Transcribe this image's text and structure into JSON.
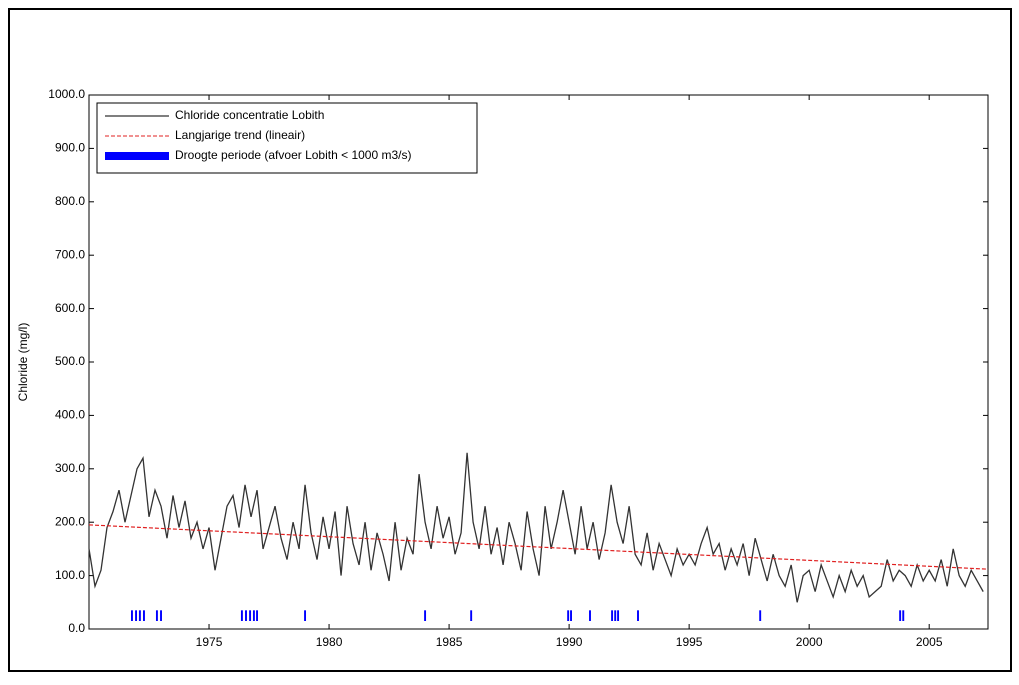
{
  "chart_data": {
    "type": "line",
    "y_label": "Chloride (mg/l)",
    "xlim": [
      1970,
      2007.45
    ],
    "xticks": [
      1975,
      1980,
      1985,
      1990,
      1995,
      2000,
      2005
    ],
    "ylim": [
      0,
      1000
    ],
    "yticks": [
      {
        "value": 0,
        "label": "0.0"
      },
      {
        "value": 100,
        "label": "100.0"
      },
      {
        "value": 200,
        "label": "200.0"
      },
      {
        "value": 300,
        "label": "300.0"
      },
      {
        "value": 400,
        "label": "400.0"
      },
      {
        "value": 500,
        "label": "500.0"
      },
      {
        "value": 600,
        "label": "600.0"
      },
      {
        "value": 700,
        "label": "700.0"
      },
      {
        "value": 800,
        "label": "800.0"
      },
      {
        "value": 900,
        "label": "900.0"
      },
      {
        "value": 1000,
        "label": "1000.0"
      }
    ],
    "legend": "upper left",
    "series": [
      {
        "name": "Chloride concentratie Lobith",
        "color": "#333333",
        "x": [
          1970,
          1970.25,
          1970.5,
          1970.75,
          1971,
          1971.25,
          1971.5,
          1971.75,
          1972,
          1972.25,
          1972.5,
          1972.75,
          1973,
          1973.25,
          1973.5,
          1973.75,
          1974,
          1974.25,
          1974.5,
          1974.75,
          1975,
          1975.25,
          1975.5,
          1975.75,
          1976,
          1976.25,
          1976.5,
          1976.75,
          1977,
          1977.25,
          1977.5,
          1977.75,
          1978,
          1978.25,
          1978.5,
          1978.75,
          1979,
          1979.25,
          1979.5,
          1979.75,
          1980,
          1980.25,
          1980.5,
          1980.75,
          1981,
          1981.25,
          1981.5,
          1981.75,
          1982,
          1982.25,
          1982.5,
          1982.75,
          1983,
          1983.25,
          1983.5,
          1983.75,
          1984,
          1984.25,
          1984.5,
          1984.75,
          1985,
          1985.25,
          1985.5,
          1985.75,
          1986,
          1986.25,
          1986.5,
          1986.75,
          1987,
          1987.25,
          1987.5,
          1987.75,
          1988,
          1988.25,
          1988.5,
          1988.75,
          1989,
          1989.25,
          1989.5,
          1989.75,
          1990,
          1990.25,
          1990.5,
          1990.75,
          1991,
          1991.25,
          1991.5,
          1991.75,
          1992,
          1992.25,
          1992.5,
          1992.75,
          1993,
          1993.25,
          1993.5,
          1993.75,
          1994,
          1994.25,
          1994.5,
          1994.75,
          1995,
          1995.25,
          1995.5,
          1995.75,
          1996,
          1996.25,
          1996.5,
          1996.75,
          1997,
          1997.25,
          1997.5,
          1997.75,
          1998,
          1998.25,
          1998.5,
          1998.75,
          1999,
          1999.25,
          1999.5,
          1999.75,
          2000,
          2000.25,
          2000.5,
          2000.75,
          2001,
          2001.25,
          2001.5,
          2001.75,
          2002,
          2002.25,
          2002.5,
          2002.75,
          2003,
          2003.25,
          2003.5,
          2003.75,
          2004,
          2004.25,
          2004.5,
          2004.75,
          2005,
          2005.25,
          2005.5,
          2005.75,
          2006,
          2006.25,
          2006.5,
          2006.75,
          2007,
          2007.25
        ],
        "values": [
          150,
          80,
          110,
          190,
          220,
          260,
          200,
          250,
          300,
          320,
          210,
          260,
          230,
          170,
          250,
          190,
          240,
          170,
          200,
          150,
          190,
          110,
          170,
          230,
          250,
          190,
          270,
          210,
          260,
          150,
          190,
          230,
          170,
          130,
          200,
          150,
          270,
          180,
          130,
          210,
          150,
          220,
          100,
          230,
          160,
          120,
          200,
          110,
          180,
          140,
          90,
          200,
          110,
          170,
          140,
          290,
          200,
          150,
          230,
          170,
          210,
          140,
          180,
          330,
          200,
          150,
          230,
          140,
          190,
          120,
          200,
          160,
          110,
          220,
          150,
          100,
          230,
          150,
          200,
          260,
          200,
          140,
          230,
          150,
          200,
          130,
          180,
          270,
          200,
          160,
          230,
          140,
          120,
          180,
          110,
          160,
          130,
          100,
          150,
          120,
          140,
          120,
          160,
          190,
          140,
          160,
          110,
          150,
          120,
          160,
          100,
          170,
          130,
          90,
          140,
          100,
          80,
          120,
          50,
          100,
          110,
          70,
          120,
          90,
          60,
          100,
          70,
          110,
          80,
          100,
          60,
          70,
          80,
          130,
          90,
          110,
          100,
          80,
          120,
          90,
          110,
          90,
          130,
          80,
          150,
          100,
          80,
          110,
          90,
          70
        ]
      },
      {
        "name": "Langjarige trend (lineair)",
        "color": "#e02020",
        "dashed": true,
        "x": [
          1970,
          2007.45
        ],
        "values": [
          195,
          112
        ]
      }
    ],
    "drought": {
      "name": "Droogte periode (afvoer Lobith < 1000 m3/s)",
      "color": "#0000ff",
      "band": [
        15,
        35
      ],
      "periods": [
        [
          1971.75,
          1971.83
        ],
        [
          1971.92,
          1972.0
        ],
        [
          1972.08,
          1972.16
        ],
        [
          1972.25,
          1972.33
        ],
        [
          1972.79,
          1972.87
        ],
        [
          1972.96,
          1973.04
        ],
        [
          1976.33,
          1976.41
        ],
        [
          1976.5,
          1976.58
        ],
        [
          1976.67,
          1976.75
        ],
        [
          1976.83,
          1976.91
        ],
        [
          1976.96,
          1977.04
        ],
        [
          1978.96,
          1979.04
        ],
        [
          1983.96,
          1984.04
        ],
        [
          1985.88,
          1985.96
        ],
        [
          1989.92,
          1990.0
        ],
        [
          1990.04,
          1990.12
        ],
        [
          1990.83,
          1990.91
        ],
        [
          1991.75,
          1991.83
        ],
        [
          1991.88,
          1991.96
        ],
        [
          1992.0,
          1992.08
        ],
        [
          1992.83,
          1992.91
        ],
        [
          1997.92,
          1998.0
        ],
        [
          2003.75,
          2003.83
        ],
        [
          2003.88,
          2003.96
        ]
      ]
    }
  }
}
